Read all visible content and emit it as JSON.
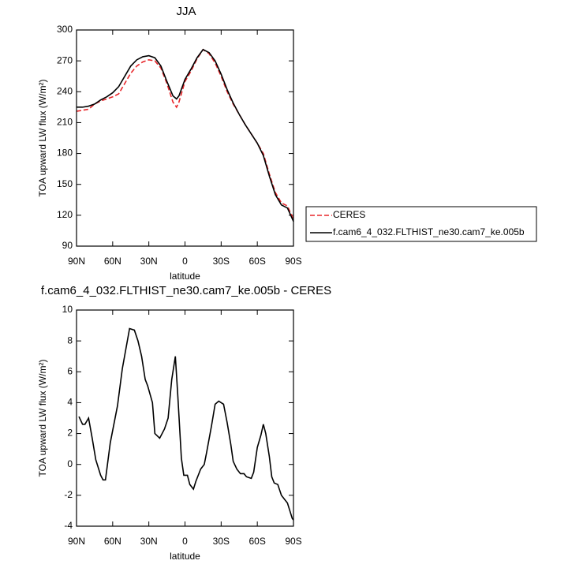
{
  "chart_data": [
    {
      "type": "line",
      "title": "JJA",
      "ylabel": "TOA upward LW flux (W/m²)",
      "xlabel": "latitude",
      "xlim": [
        90,
        -90
      ],
      "ylim": [
        90,
        300
      ],
      "xticks": [
        {
          "value": 90,
          "label": "90N"
        },
        {
          "value": 60,
          "label": "60N"
        },
        {
          "value": 30,
          "label": "30N"
        },
        0,
        {
          "value": -30,
          "label": "30S"
        },
        {
          "value": -60,
          "label": "60S"
        },
        {
          "value": -90,
          "label": "90S"
        }
      ],
      "yticks": [
        90,
        120,
        150,
        180,
        210,
        240,
        270,
        300
      ],
      "legend": "outside-right",
      "x": [
        90,
        85,
        80,
        75,
        70,
        65,
        60,
        55,
        50,
        45,
        40,
        35,
        30,
        25,
        20,
        15,
        10,
        7,
        5,
        0,
        -5,
        -10,
        -15,
        -20,
        -25,
        -30,
        -35,
        -40,
        -45,
        -50,
        -55,
        -60,
        -65,
        -70,
        -75,
        -80,
        -85,
        -90
      ],
      "series": [
        {
          "name": "CERES",
          "color": "#e8262a",
          "dashed": true,
          "values": [
            221,
            222,
            223,
            228,
            231,
            233,
            235,
            238,
            248,
            258,
            265,
            269,
            271,
            270,
            263,
            248,
            230,
            225,
            230,
            250,
            260,
            272,
            281,
            277,
            268,
            255,
            240,
            228,
            218,
            208,
            199,
            190,
            180,
            160,
            142,
            132,
            129,
            116
          ]
        },
        {
          "name": "f.cam6_4_032.FLTHIST_ne30.cam7_ke.005b",
          "color": "#000000",
          "dashed": false,
          "values": [
            225,
            225,
            226,
            228,
            232,
            235,
            239,
            245,
            255,
            265,
            271,
            274,
            275,
            273,
            265,
            250,
            236,
            233,
            236,
            252,
            262,
            273,
            281,
            278,
            270,
            257,
            242,
            229,
            218,
            208,
            199,
            190,
            178,
            158,
            140,
            130,
            127,
            114
          ]
        }
      ]
    },
    {
      "type": "line",
      "title": "f.cam6_4_032.FLTHIST_ne30.cam7_ke.005b - CERES",
      "ylabel": "TOA upward LW flux (W/m²)",
      "xlabel": "latitude",
      "xlim": [
        90,
        -90
      ],
      "ylim": [
        -4,
        10
      ],
      "xticks": [
        {
          "value": 90,
          "label": "90N"
        },
        {
          "value": 60,
          "label": "60N"
        },
        {
          "value": 30,
          "label": "30N"
        },
        0,
        {
          "value": -30,
          "label": "30S"
        },
        {
          "value": -60,
          "label": "60S"
        },
        {
          "value": -90,
          "label": "90S"
        }
      ],
      "yticks": [
        -4,
        -2,
        0,
        2,
        4,
        6,
        8,
        10
      ],
      "x": [
        88,
        85,
        83,
        80,
        77,
        74,
        70,
        68,
        66,
        62,
        56,
        52,
        46,
        42,
        39,
        36,
        33,
        31,
        27,
        25,
        21,
        17,
        14,
        11,
        8,
        6,
        3,
        1,
        -2,
        -4,
        -7,
        -9,
        -13,
        -16,
        -18,
        -22,
        -25,
        -28,
        -32,
        -35,
        -38,
        -40,
        -43,
        -46,
        -49,
        -51,
        -55,
        -57,
        -60,
        -63,
        -65,
        -67,
        -70,
        -72,
        -74,
        -77,
        -80,
        -83,
        -85,
        -87,
        -89,
        -90
      ],
      "series": [
        {
          "color": "#000000",
          "values": [
            3.1,
            2.6,
            2.6,
            3.0,
            1.7,
            0.3,
            -0.7,
            -1.0,
            -1.0,
            1.4,
            3.8,
            6.2,
            8.8,
            8.7,
            8.0,
            7.0,
            5.5,
            5.1,
            4.0,
            2.0,
            1.7,
            2.3,
            3.0,
            5.5,
            7.0,
            4.5,
            0.4,
            -0.7,
            -0.7,
            -1.3,
            -1.6,
            -1.1,
            -0.3,
            0.0,
            0.8,
            2.5,
            3.9,
            4.1,
            3.9,
            2.7,
            1.3,
            0.2,
            -0.3,
            -0.6,
            -0.6,
            -0.8,
            -0.9,
            -0.5,
            1.1,
            1.9,
            2.6,
            2.0,
            0.5,
            -0.8,
            -1.2,
            -1.3,
            -2.0,
            -2.3,
            -2.5,
            -3.0,
            -3.5,
            -3.6
          ]
        }
      ]
    }
  ]
}
